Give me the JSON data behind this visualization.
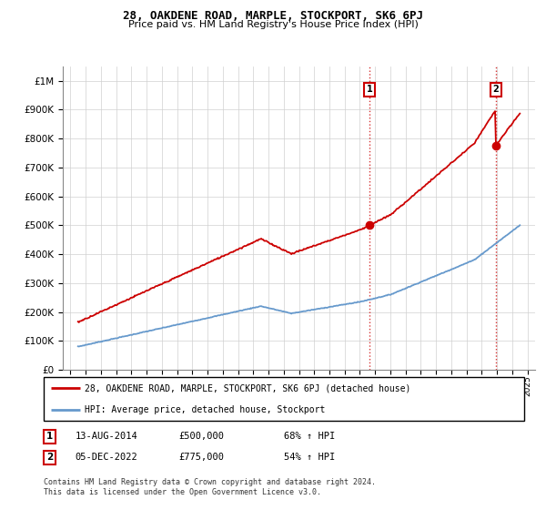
{
  "title": "28, OAKDENE ROAD, MARPLE, STOCKPORT, SK6 6PJ",
  "subtitle": "Price paid vs. HM Land Registry's House Price Index (HPI)",
  "ytick_values": [
    0,
    100000,
    200000,
    300000,
    400000,
    500000,
    600000,
    700000,
    800000,
    900000,
    1000000
  ],
  "ylim": [
    0,
    1050000
  ],
  "hpi_color": "#6699cc",
  "price_color": "#cc0000",
  "sale1_date": "13-AUG-2014",
  "sale1_price": 500000,
  "sale1_label": "68% ↑ HPI",
  "sale2_date": "05-DEC-2022",
  "sale2_price": 775000,
  "sale2_label": "54% ↑ HPI",
  "legend_line1": "28, OAKDENE ROAD, MARPLE, STOCKPORT, SK6 6PJ (detached house)",
  "legend_line2": "HPI: Average price, detached house, Stockport",
  "footnote": "Contains HM Land Registry data © Crown copyright and database right 2024.\nThis data is licensed under the Open Government Licence v3.0.",
  "sale1_t": 2014.625,
  "sale2_t": 2022.917
}
